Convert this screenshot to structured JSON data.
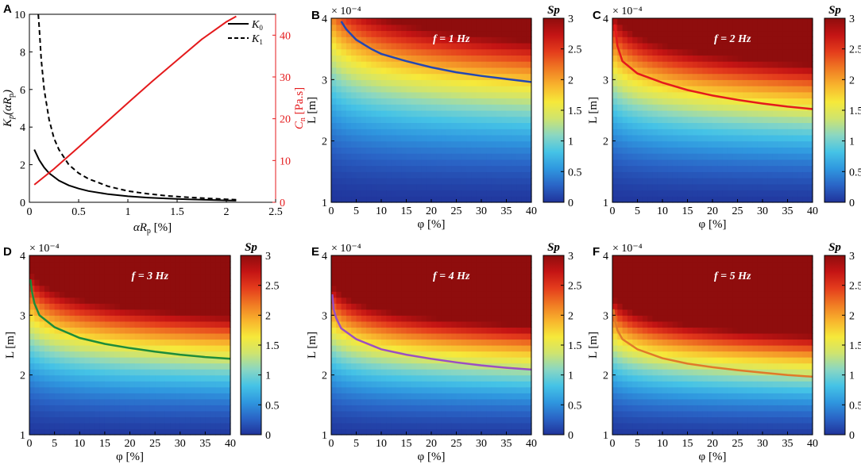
{
  "figure": {
    "panel_labels": [
      "A",
      "B",
      "C",
      "D",
      "E",
      "F"
    ],
    "colormap": [
      "#20339a",
      "#2a64c6",
      "#2f97df",
      "#45c3e6",
      "#8ad7c2",
      "#cfe46e",
      "#f6e93a",
      "#f8b42d",
      "#f07a23",
      "#e43c1c",
      "#c41414",
      "#8f0d0d"
    ],
    "line_colors": {
      "black": "#000000",
      "red": "#e41a1c"
    }
  },
  "chart_data": [
    {
      "panel": "A",
      "type": "line",
      "xlabel": "αR",
      "xlabel_sub": "p",
      "xlabel_unit": " [%]",
      "ylabel": "K",
      "ylabel_sub": "p",
      "ylabel_rest": "(αR",
      "ylabel_sub2": "p",
      "ylabel_end": ")",
      "y2label": "C",
      "y2label_sub": "n",
      "y2label_unit": " [Pa.s]",
      "xlim": [
        0,
        2.5
      ],
      "ylim": [
        0,
        10
      ],
      "y2lim": [
        0,
        45
      ],
      "xticks": [
        "0",
        "0.5",
        "1",
        "1.5",
        "2",
        "2.5"
      ],
      "yticks": [
        "0",
        "2",
        "4",
        "6",
        "8",
        "10"
      ],
      "y2ticks": [
        "0",
        "10",
        "20",
        "30",
        "40"
      ],
      "legend": [
        {
          "name": "K",
          "sub": "0",
          "style": "solid"
        },
        {
          "name": "K",
          "sub": "1",
          "style": "dashed"
        }
      ],
      "series": [
        {
          "name": "K0",
          "style": "solid",
          "color": "#000000",
          "axis": "left",
          "x": [
            0.05,
            0.1,
            0.15,
            0.2,
            0.3,
            0.4,
            0.5,
            0.6,
            0.8,
            1.0,
            1.2,
            1.4,
            1.6,
            1.8,
            2.0,
            2.1
          ],
          "y": [
            2.8,
            2.25,
            1.85,
            1.55,
            1.15,
            0.9,
            0.73,
            0.6,
            0.43,
            0.32,
            0.25,
            0.2,
            0.16,
            0.13,
            0.1,
            0.09
          ]
        },
        {
          "name": "K1",
          "style": "dashed",
          "color": "#000000",
          "axis": "left",
          "x": [
            0.09,
            0.1,
            0.12,
            0.15,
            0.2,
            0.25,
            0.3,
            0.4,
            0.5,
            0.6,
            0.8,
            1.0,
            1.2,
            1.4,
            1.6,
            1.8,
            2.0,
            2.1
          ],
          "y": [
            10,
            9.3,
            7.6,
            6.0,
            4.4,
            3.4,
            2.8,
            2.0,
            1.55,
            1.25,
            0.85,
            0.6,
            0.45,
            0.34,
            0.27,
            0.21,
            0.16,
            0.14
          ]
        },
        {
          "name": "Cn",
          "style": "solid",
          "color": "#e41a1c",
          "axis": "right",
          "x": [
            0.05,
            0.25,
            0.5,
            0.75,
            1.0,
            1.25,
            1.5,
            1.75,
            2.0,
            2.1
          ],
          "y": [
            4.2,
            8.0,
            13.2,
            18.5,
            23.8,
            29.0,
            34.0,
            39.0,
            43.2,
            44.5
          ]
        }
      ]
    },
    {
      "panel": "B",
      "type": "heatmap",
      "freq_label": "f = 1 Hz",
      "contour_color": "#2447b2",
      "exponent_label": "× 10⁻⁴",
      "xlabel": "φ [%]",
      "ylabel": "L [m]",
      "colorbar_title": "Sp",
      "xlim": [
        0,
        40
      ],
      "ylim": [
        1,
        4
      ],
      "clim": [
        0,
        3
      ],
      "sp_scale": 0.75,
      "xticks": [
        "0",
        "5",
        "10",
        "15",
        "20",
        "25",
        "30",
        "35",
        "40"
      ],
      "yticks": [
        "1",
        "2",
        "3",
        "4"
      ],
      "cticks": [
        "0",
        "0.5",
        "1",
        "1.5",
        "2",
        "2.5",
        "3"
      ],
      "contour": {
        "phi": [
          2,
          3,
          5,
          8,
          10,
          15,
          20,
          25,
          30,
          35,
          40
        ],
        "L": [
          3.95,
          3.82,
          3.65,
          3.5,
          3.42,
          3.3,
          3.2,
          3.12,
          3.06,
          3.01,
          2.96
        ]
      }
    },
    {
      "panel": "C",
      "type": "heatmap",
      "freq_label": "f = 2 Hz",
      "contour_color": "#e41a1c",
      "exponent_label": "× 10⁻⁴",
      "xlabel": "φ [%]",
      "ylabel": "L [m]",
      "colorbar_title": "Sp",
      "xlim": [
        0,
        40
      ],
      "ylim": [
        1,
        4
      ],
      "clim": [
        0,
        3
      ],
      "sp_scale": 1.0,
      "xticks": [
        "0",
        "5",
        "10",
        "15",
        "20",
        "25",
        "30",
        "35",
        "40"
      ],
      "yticks": [
        "1",
        "2",
        "3",
        "4"
      ],
      "cticks": [
        "0",
        "0.5",
        "1",
        "1.5",
        "2",
        "2.5",
        "3"
      ],
      "contour": {
        "phi": [
          0.5,
          1,
          2,
          5,
          10,
          15,
          20,
          25,
          30,
          35,
          40
        ],
        "L": [
          3.9,
          3.55,
          3.3,
          3.1,
          2.95,
          2.83,
          2.74,
          2.67,
          2.61,
          2.56,
          2.52
        ]
      }
    },
    {
      "panel": "D",
      "type": "heatmap",
      "freq_label": "f = 3 Hz",
      "contour_color": "#1e8c3a",
      "exponent_label": "× 10⁻⁴",
      "xlabel": "φ [%]",
      "ylabel": "L [m]",
      "colorbar_title": "Sp",
      "xlim": [
        0,
        40
      ],
      "ylim": [
        1,
        4
      ],
      "clim": [
        0,
        3
      ],
      "sp_scale": 1.25,
      "xticks": [
        "0",
        "5",
        "10",
        "15",
        "20",
        "25",
        "30",
        "35",
        "40"
      ],
      "yticks": [
        "1",
        "2",
        "3",
        "4"
      ],
      "cticks": [
        "0",
        "0.5",
        "1",
        "1.5",
        "2",
        "2.5",
        "3"
      ],
      "contour": {
        "phi": [
          0.2,
          0.5,
          1,
          2,
          5,
          10,
          15,
          20,
          25,
          30,
          35,
          40
        ],
        "L": [
          3.6,
          3.4,
          3.2,
          3.0,
          2.8,
          2.62,
          2.52,
          2.45,
          2.39,
          2.34,
          2.3,
          2.27
        ]
      }
    },
    {
      "panel": "E",
      "type": "heatmap",
      "freq_label": "f = 4 Hz",
      "contour_color": "#9b4fc2",
      "exponent_label": "× 10⁻⁴",
      "xlabel": "φ [%]",
      "ylabel": "L [m]",
      "colorbar_title": "Sp",
      "xlim": [
        0,
        40
      ],
      "ylim": [
        1,
        4
      ],
      "clim": [
        0,
        3
      ],
      "sp_scale": 1.45,
      "xticks": [
        "0",
        "5",
        "10",
        "15",
        "20",
        "25",
        "30",
        "35",
        "40"
      ],
      "yticks": [
        "1",
        "2",
        "3",
        "4"
      ],
      "cticks": [
        "0",
        "0.5",
        "1",
        "1.5",
        "2",
        "2.5",
        "3"
      ],
      "contour": {
        "phi": [
          0.2,
          0.5,
          1,
          2,
          5,
          10,
          15,
          20,
          25,
          30,
          35,
          40
        ],
        "L": [
          3.35,
          3.1,
          2.95,
          2.78,
          2.6,
          2.43,
          2.34,
          2.27,
          2.21,
          2.16,
          2.12,
          2.09
        ]
      }
    },
    {
      "panel": "F",
      "type": "heatmap",
      "freq_label": "f = 5 Hz",
      "contour_color": "#e07a2a",
      "exponent_label": "× 10⁻⁴",
      "xlabel": "φ [%]",
      "ylabel": "L [m]",
      "colorbar_title": "Sp",
      "xlim": [
        0,
        40
      ],
      "ylim": [
        1,
        4
      ],
      "clim": [
        0,
        3
      ],
      "sp_scale": 1.7,
      "xticks": [
        "0",
        "5",
        "10",
        "15",
        "20",
        "25",
        "30",
        "35",
        "40"
      ],
      "yticks": [
        "1",
        "2",
        "3",
        "4"
      ],
      "cticks": [
        "0",
        "0.5",
        "1",
        "1.5",
        "2",
        "2.5",
        "3"
      ],
      "contour": {
        "phi": [
          0.2,
          0.5,
          1,
          2,
          5,
          10,
          15,
          20,
          25,
          30,
          35,
          40
        ],
        "L": [
          3.1,
          2.92,
          2.75,
          2.6,
          2.43,
          2.28,
          2.19,
          2.13,
          2.08,
          2.04,
          2.0,
          1.97
        ]
      }
    }
  ]
}
